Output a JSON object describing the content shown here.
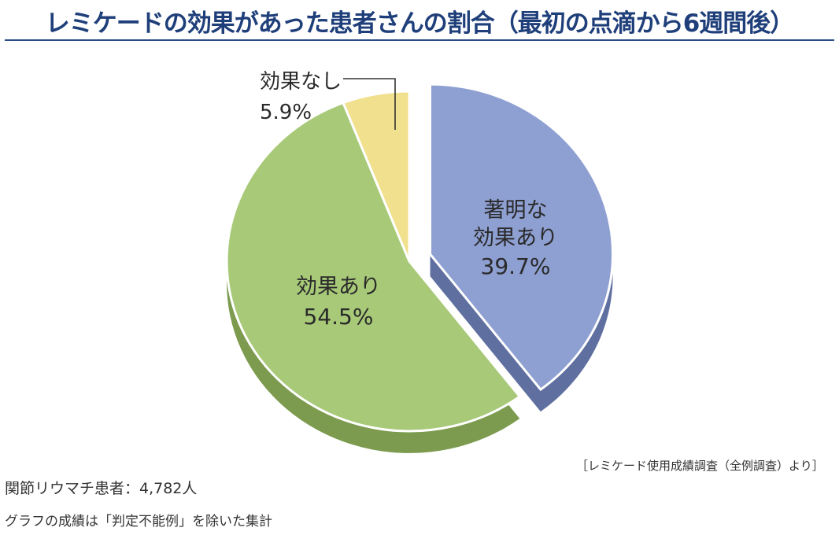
{
  "chart_data": {
    "type": "pie",
    "title": "レミケードの効果があった患者さんの割合（最初の点滴から6週間後）",
    "slices": [
      {
        "label": "著明な効果あり",
        "value": 39.7,
        "value_text": "39.7%",
        "color": "#8e9fd2",
        "side_color": "#5f6f9f",
        "exploded": true
      },
      {
        "label": "効果あり",
        "value": 54.5,
        "value_text": "54.5%",
        "color": "#a7c978",
        "side_color": "#7c9b4f",
        "exploded": false
      },
      {
        "label": "効果なし",
        "value": 5.9,
        "value_text": "5.9%",
        "color": "#f1e08e",
        "side_color": "#c2ae5c",
        "exploded": false
      }
    ],
    "legend": "none",
    "notes": {
      "source": "［レミケード使用成績調査（全例調査）より］",
      "patients": "関節リウマチ患者：4,782人",
      "caveat": "グラフの成績は「判定不能例」を除いた集計"
    }
  }
}
